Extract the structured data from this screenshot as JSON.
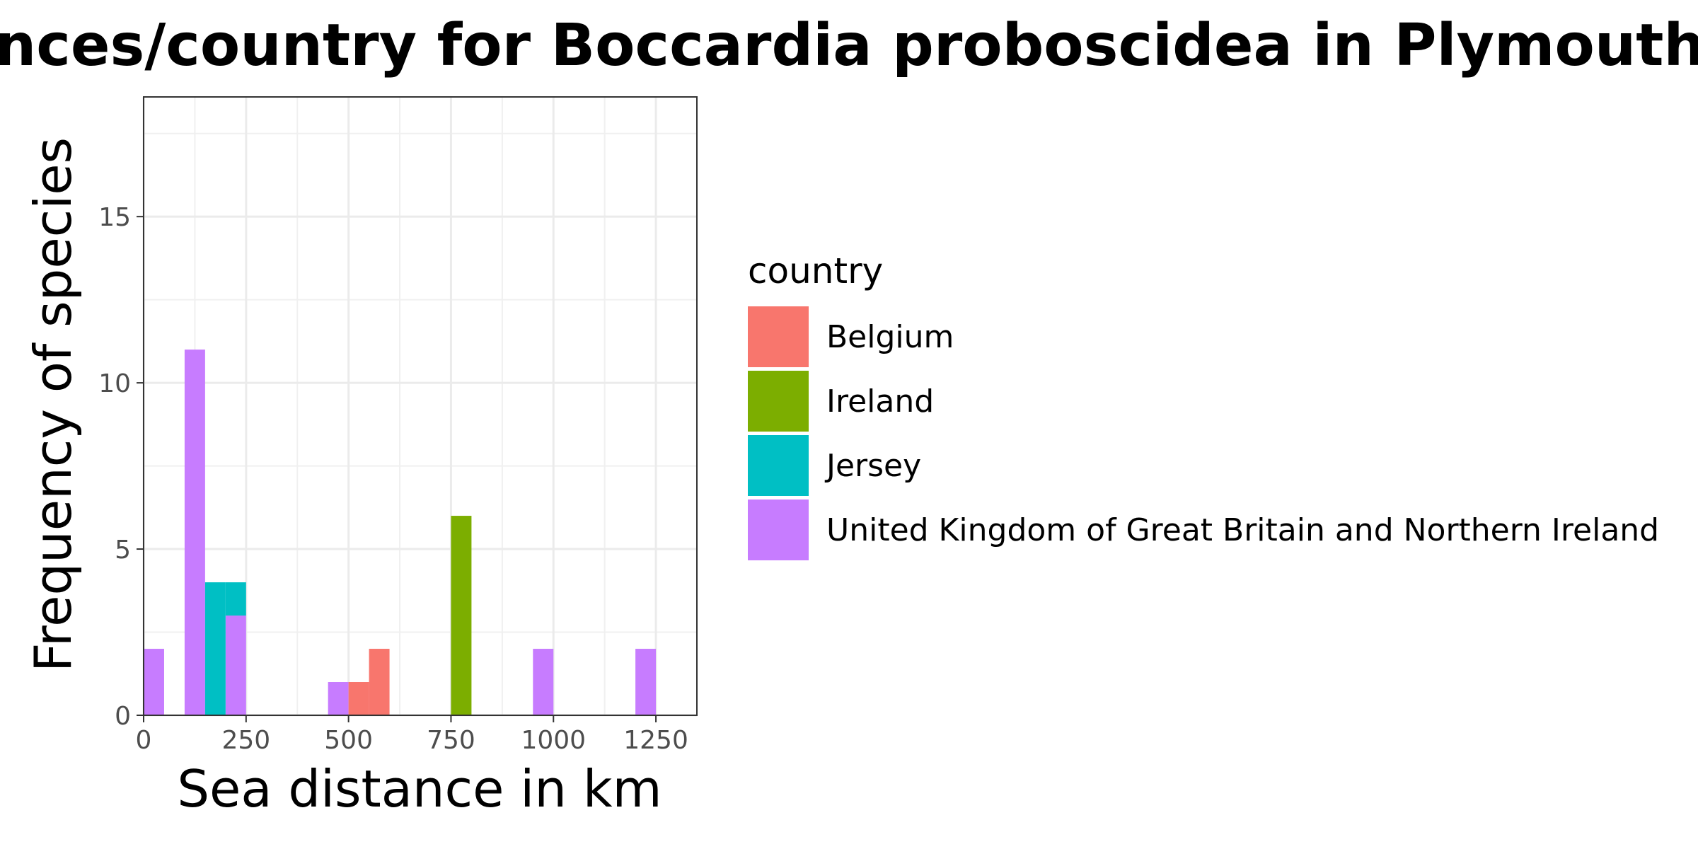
{
  "chart_data": {
    "type": "bar",
    "subtype": "stacked-histogram",
    "title": "Sea distances/country for Boccardia proboscidea in Plymouth",
    "xlabel": "Sea distance in km",
    "ylabel": "Frequency of species",
    "xlim": [
      0,
      1350
    ],
    "ylim": [
      0,
      18.6
    ],
    "xticks": [
      0,
      250,
      500,
      750,
      1000,
      1250
    ],
    "xtick_labels": [
      "0",
      "250",
      "500",
      "750",
      "1000",
      "1250"
    ],
    "yticks": [
      0,
      5,
      10,
      15
    ],
    "ytick_labels": [
      "0",
      "5",
      "10",
      "15"
    ],
    "bin_width": 50,
    "grid": true,
    "legend_title": "country",
    "legend_position": "right",
    "series": [
      {
        "name": "Belgium",
        "color": "#F8766D",
        "bins": [
          {
            "x_start": 500,
            "x_end": 550,
            "value": 1
          },
          {
            "x_start": 550,
            "x_end": 600,
            "value": 2
          }
        ]
      },
      {
        "name": "Ireland",
        "color": "#7CAE00",
        "bins": [
          {
            "x_start": 750,
            "x_end": 800,
            "value": 6
          }
        ]
      },
      {
        "name": "Jersey",
        "color": "#00BFC4",
        "bins": [
          {
            "x_start": 150,
            "x_end": 200,
            "value": 4
          },
          {
            "x_start": 200,
            "x_end": 250,
            "value": 1
          }
        ]
      },
      {
        "name": "United Kingdom of Great Britain and Northern Ireland",
        "color": "#C77CFF",
        "bins": [
          {
            "x_start": 0,
            "x_end": 50,
            "value": 2
          },
          {
            "x_start": 100,
            "x_end": 150,
            "value": 11
          },
          {
            "x_start": 200,
            "x_end": 250,
            "value": 3
          },
          {
            "x_start": 450,
            "x_end": 500,
            "value": 1
          },
          {
            "x_start": 950,
            "x_end": 1000,
            "value": 2
          },
          {
            "x_start": 1200,
            "x_end": 1250,
            "value": 2
          }
        ]
      }
    ]
  }
}
